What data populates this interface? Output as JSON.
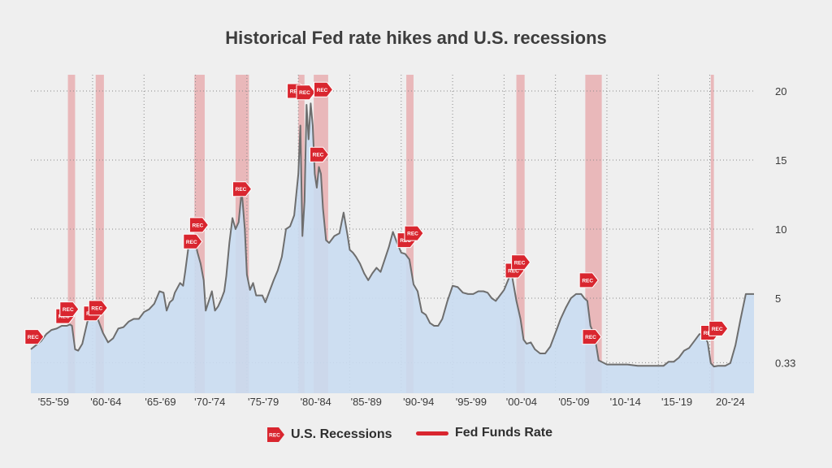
{
  "chart_data": {
    "type": "area",
    "title": "Historical Fed rate hikes and U.S. recessions",
    "x_tick_labels": [
      "'55-'59",
      "'60-'64",
      "'65-'69",
      "'70-'74",
      "'75-'79",
      "'80-'84",
      "'85-'89",
      "'90-'94",
      "'95-'99",
      "'00-'04",
      "'05-'09",
      "'10-'14",
      "'15-'19",
      "20-'24"
    ],
    "y_tick_labels": [
      "20",
      "15",
      "10",
      "5",
      "0.33"
    ],
    "ylim": [
      -1.5,
      21
    ],
    "xlim": [
      1954.0,
      2024.3
    ],
    "grid": true,
    "legend_position": "bottom",
    "series": [
      {
        "name": "Fed Funds Rate",
        "color": "#6e6e6e",
        "fill": "#c9dcf1",
        "x": [
          1954.0,
          1954.5,
          1955.0,
          1955.5,
          1956.0,
          1956.5,
          1957.0,
          1957.5,
          1957.8,
          1958.0,
          1958.3,
          1958.6,
          1959.0,
          1959.5,
          1960.0,
          1960.5,
          1961.0,
          1961.5,
          1962.0,
          1962.5,
          1963.0,
          1963.5,
          1964.0,
          1964.5,
          1965.0,
          1965.5,
          1966.0,
          1966.5,
          1966.9,
          1967.2,
          1967.5,
          1967.8,
          1968.0,
          1968.5,
          1968.8,
          1969.0,
          1969.3,
          1969.6,
          1969.9,
          1970.2,
          1970.5,
          1970.8,
          1971.0,
          1971.3,
          1971.6,
          1971.9,
          1972.2,
          1972.5,
          1972.8,
          1973.0,
          1973.3,
          1973.6,
          1973.9,
          1974.2,
          1974.5,
          1974.8,
          1975.0,
          1975.3,
          1975.6,
          1975.9,
          1976.2,
          1976.5,
          1976.8,
          1977.2,
          1977.6,
          1978.0,
          1978.4,
          1978.8,
          1979.2,
          1979.6,
          1980.0,
          1980.2,
          1980.4,
          1980.6,
          1980.8,
          1981.0,
          1981.2,
          1981.4,
          1981.6,
          1981.8,
          1982.0,
          1982.2,
          1982.4,
          1982.7,
          1983.0,
          1983.5,
          1984.0,
          1984.4,
          1984.8,
          1985.0,
          1985.3,
          1985.6,
          1986.0,
          1986.4,
          1986.8,
          1987.2,
          1987.6,
          1988.0,
          1988.4,
          1988.8,
          1989.2,
          1989.6,
          1990.0,
          1990.4,
          1990.8,
          1991.2,
          1991.6,
          1992.0,
          1992.4,
          1992.8,
          1993.2,
          1993.6,
          1994.0,
          1994.5,
          1995.0,
          1995.5,
          1996.0,
          1996.5,
          1997.0,
          1997.5,
          1998.0,
          1998.4,
          1998.8,
          1999.2,
          1999.6,
          2000.0,
          2000.5,
          2000.8,
          2001.2,
          2001.6,
          2001.9,
          2002.2,
          2002.6,
          2003.0,
          2003.5,
          2004.0,
          2004.5,
          2005.0,
          2005.5,
          2006.0,
          2006.5,
          2007.0,
          2007.5,
          2007.8,
          2008.1,
          2008.4,
          2008.8,
          2009.2,
          2010.0,
          2011.0,
          2012.0,
          2013.0,
          2014.0,
          2015.0,
          2015.5,
          2016.0,
          2016.5,
          2017.0,
          2017.5,
          2018.0,
          2018.5,
          2019.0,
          2019.4,
          2019.8,
          2020.1,
          2020.4,
          2020.8,
          2021.5,
          2022.0,
          2022.5,
          2023.0,
          2023.5,
          2024.0,
          2024.3
        ],
        "values": [
          1.3,
          1.6,
          1.9,
          2.4,
          2.7,
          2.8,
          3.0,
          3.0,
          3.1,
          3.0,
          1.3,
          1.2,
          1.7,
          3.3,
          3.9,
          3.5,
          2.5,
          1.8,
          2.1,
          2.8,
          2.9,
          3.3,
          3.5,
          3.5,
          4.0,
          4.2,
          4.6,
          5.5,
          5.4,
          4.1,
          4.7,
          4.9,
          5.4,
          6.1,
          5.9,
          6.9,
          8.6,
          9.2,
          9.3,
          8.3,
          7.5,
          6.3,
          4.1,
          4.8,
          5.5,
          4.1,
          4.4,
          4.9,
          5.5,
          6.6,
          9.0,
          10.8,
          10.0,
          10.5,
          12.8,
          10.0,
          6.7,
          5.6,
          6.1,
          5.2,
          5.2,
          5.2,
          4.7,
          5.5,
          6.3,
          7.0,
          8.0,
          10.0,
          10.2,
          11.0,
          14.0,
          17.5,
          9.5,
          12.0,
          19.0,
          16.5,
          19.1,
          17.5,
          14.0,
          13.0,
          14.5,
          14.0,
          11.5,
          9.2,
          9.0,
          9.5,
          9.7,
          11.2,
          9.5,
          8.5,
          8.3,
          8.0,
          7.5,
          6.8,
          6.3,
          6.8,
          7.2,
          6.9,
          7.8,
          8.7,
          9.8,
          9.0,
          8.3,
          8.2,
          7.8,
          6.0,
          5.5,
          4.0,
          3.8,
          3.2,
          3.0,
          3.0,
          3.5,
          4.8,
          5.9,
          5.8,
          5.4,
          5.3,
          5.3,
          5.5,
          5.5,
          5.4,
          5.0,
          4.8,
          5.2,
          5.6,
          6.5,
          6.5,
          4.8,
          3.5,
          2.0,
          1.7,
          1.8,
          1.3,
          1.0,
          1.0,
          1.5,
          2.5,
          3.5,
          4.3,
          5.0,
          5.3,
          5.3,
          5.0,
          4.8,
          3.0,
          2.3,
          0.5,
          0.2,
          0.2,
          0.2,
          0.1,
          0.1,
          0.1,
          0.1,
          0.4,
          0.4,
          0.7,
          1.2,
          1.4,
          1.9,
          2.4,
          2.4,
          1.8,
          0.3,
          0.05,
          0.1,
          0.1,
          0.3,
          1.6,
          3.5,
          5.3,
          5.3,
          5.3
        ],
        "markers": []
      },
      {
        "name": "U.S. Recessions",
        "color": "#d9262f",
        "intervals": [
          [
            1957.6,
            1958.3
          ],
          [
            1960.3,
            1961.1
          ],
          [
            1969.9,
            1970.9
          ],
          [
            1973.9,
            1975.2
          ],
          [
            1980.0,
            1980.6
          ],
          [
            1981.5,
            1982.9
          ],
          [
            1990.5,
            1991.2
          ],
          [
            2001.2,
            2002.0
          ],
          [
            2007.9,
            2009.5
          ],
          [
            2020.1,
            2020.4
          ]
        ],
        "markers": [
          {
            "label": "REC",
            "x": 1954.3,
            "y": 2.2
          },
          {
            "label": "REC",
            "x": 1957.3,
            "y": 3.7
          },
          {
            "label": "REC",
            "x": 1957.7,
            "y": 4.2
          },
          {
            "label": "REC",
            "x": 1960.0,
            "y": 3.9
          },
          {
            "label": "REC",
            "x": 1960.5,
            "y": 4.3
          },
          {
            "label": "REC",
            "x": 1969.7,
            "y": 9.1
          },
          {
            "label": "REC",
            "x": 1970.3,
            "y": 10.3
          },
          {
            "label": "REC",
            "x": 1974.5,
            "y": 12.9
          },
          {
            "label": "REC",
            "x": 1979.8,
            "y": 20.0
          },
          {
            "label": "REC",
            "x": 1980.7,
            "y": 19.9
          },
          {
            "label": "REC",
            "x": 1982.4,
            "y": 20.1
          },
          {
            "label": "REC",
            "x": 1982.0,
            "y": 15.4
          },
          {
            "label": "REC",
            "x": 1990.5,
            "y": 9.2
          },
          {
            "label": "REC",
            "x": 1991.2,
            "y": 9.7
          },
          {
            "label": "REC",
            "x": 2001.0,
            "y": 7.0
          },
          {
            "label": "REC",
            "x": 2001.6,
            "y": 7.6
          },
          {
            "label": "REC",
            "x": 2008.2,
            "y": 6.3
          },
          {
            "label": "REC",
            "x": 2008.5,
            "y": 2.2
          },
          {
            "label": "REC",
            "x": 2020.0,
            "y": 2.5
          },
          {
            "label": "REC",
            "x": 2020.8,
            "y": 2.8
          }
        ]
      }
    ]
  },
  "legend": {
    "recessions_label": "U.S. Recessions",
    "rate_label": "Fed Funds Rate"
  },
  "rec_marker_text": "REC"
}
